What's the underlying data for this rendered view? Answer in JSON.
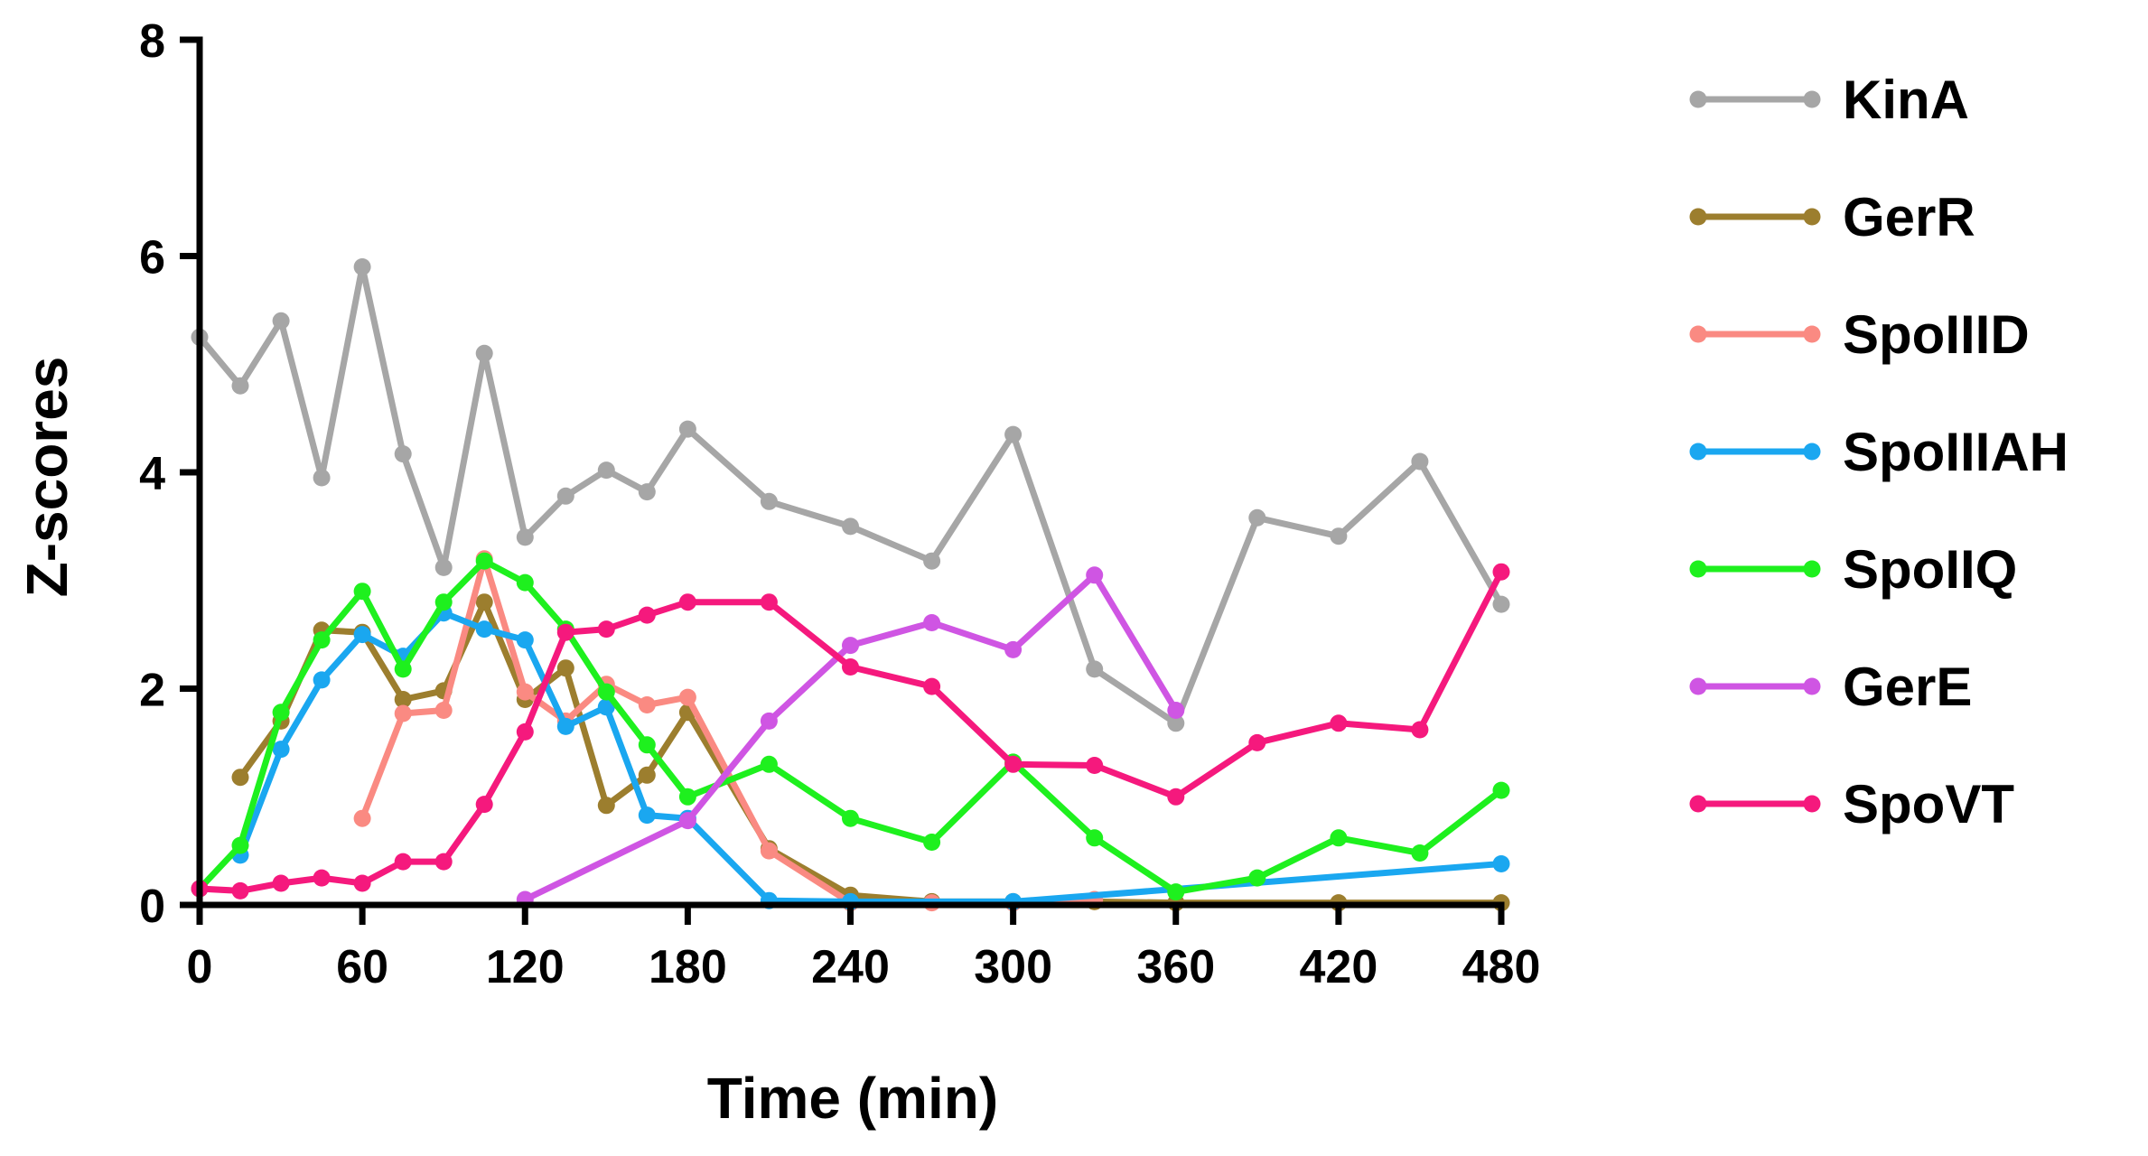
{
  "chart_data": {
    "type": "line",
    "title": "",
    "xlabel": "Time (min)",
    "ylabel": "Z-scores",
    "xlim": [
      0,
      480
    ],
    "ylim": [
      0,
      8
    ],
    "xticks": [
      "0",
      "60",
      "120",
      "180",
      "240",
      "300",
      "360",
      "420",
      "480"
    ],
    "yticks": [
      "0",
      "2",
      "4",
      "6",
      "8"
    ],
    "grid": false,
    "legend_position": "right",
    "series": [
      {
        "name": "KinA",
        "color": "#A6A6A6",
        "points": [
          [
            0,
            5.25
          ],
          [
            15,
            4.8
          ],
          [
            30,
            5.4
          ],
          [
            45,
            3.95
          ],
          [
            60,
            5.9
          ],
          [
            75,
            4.17
          ],
          [
            90,
            3.12
          ],
          [
            105,
            5.1
          ],
          [
            120,
            3.4
          ],
          [
            135,
            3.78
          ],
          [
            150,
            4.02
          ],
          [
            165,
            3.82
          ],
          [
            180,
            4.4
          ],
          [
            210,
            3.73
          ],
          [
            240,
            3.5
          ],
          [
            270,
            3.18
          ],
          [
            300,
            4.35
          ],
          [
            330,
            2.18
          ],
          [
            360,
            1.68
          ],
          [
            390,
            3.58
          ],
          [
            420,
            3.41
          ],
          [
            450,
            4.1
          ],
          [
            480,
            2.78
          ]
        ]
      },
      {
        "name": "GerR",
        "color": "#9C7E2E",
        "points": [
          [
            15,
            1.18
          ],
          [
            30,
            1.7
          ],
          [
            45,
            2.54
          ],
          [
            60,
            2.52
          ],
          [
            75,
            1.9
          ],
          [
            90,
            1.98
          ],
          [
            105,
            2.8
          ],
          [
            120,
            1.9
          ],
          [
            135,
            2.19
          ],
          [
            150,
            0.92
          ],
          [
            165,
            1.2
          ],
          [
            180,
            1.78
          ],
          [
            210,
            0.52
          ],
          [
            240,
            0.09
          ],
          [
            270,
            0.03
          ],
          [
            300,
            0.03
          ],
          [
            330,
            0.03
          ],
          [
            360,
            0.02
          ],
          [
            420,
            0.02
          ],
          [
            480,
            0.02
          ]
        ]
      },
      {
        "name": "SpoIIID",
        "color": "#FA8A82",
        "points": [
          [
            60,
            0.8
          ],
          [
            75,
            1.77
          ],
          [
            90,
            1.8
          ],
          [
            105,
            3.2
          ],
          [
            120,
            1.97
          ],
          [
            135,
            1.7
          ],
          [
            150,
            2.04
          ],
          [
            165,
            1.85
          ],
          [
            180,
            1.92
          ],
          [
            210,
            0.5
          ],
          [
            240,
            0.02
          ],
          [
            270,
            0.02
          ],
          [
            300,
            0.02
          ],
          [
            330,
            0.05
          ]
        ]
      },
      {
        "name": "SpoIIIAH",
        "color": "#1AA7F0",
        "points": [
          [
            15,
            0.46
          ],
          [
            30,
            1.44
          ],
          [
            45,
            2.08
          ],
          [
            60,
            2.5
          ],
          [
            75,
            2.3
          ],
          [
            90,
            2.7
          ],
          [
            105,
            2.55
          ],
          [
            120,
            2.45
          ],
          [
            135,
            1.65
          ],
          [
            150,
            1.83
          ],
          [
            165,
            0.83
          ],
          [
            180,
            0.8
          ],
          [
            210,
            0.04
          ],
          [
            240,
            0.03
          ],
          [
            300,
            0.03
          ],
          [
            480,
            0.38
          ]
        ]
      },
      {
        "name": "SpoIIQ",
        "color": "#1EF01E",
        "points": [
          [
            0,
            0.15
          ],
          [
            15,
            0.55
          ],
          [
            30,
            1.78
          ],
          [
            45,
            2.45
          ],
          [
            60,
            2.9
          ],
          [
            75,
            2.18
          ],
          [
            90,
            2.8
          ],
          [
            105,
            3.18
          ],
          [
            120,
            2.98
          ],
          [
            135,
            2.55
          ],
          [
            150,
            1.97
          ],
          [
            165,
            1.48
          ],
          [
            180,
            1.0
          ],
          [
            210,
            1.3
          ],
          [
            240,
            0.8
          ],
          [
            270,
            0.58
          ],
          [
            300,
            1.32
          ],
          [
            330,
            0.62
          ],
          [
            360,
            0.12
          ],
          [
            390,
            0.25
          ],
          [
            420,
            0.62
          ],
          [
            450,
            0.48
          ],
          [
            480,
            1.06
          ]
        ]
      },
      {
        "name": "GerE",
        "color": "#CF55E3",
        "points": [
          [
            120,
            0.05
          ],
          [
            180,
            0.78
          ],
          [
            210,
            1.7
          ],
          [
            240,
            2.4
          ],
          [
            270,
            2.61
          ],
          [
            300,
            2.36
          ],
          [
            330,
            3.05
          ],
          [
            360,
            1.8
          ]
        ]
      },
      {
        "name": "SpoVT",
        "color": "#F5197D",
        "points": [
          [
            0,
            0.15
          ],
          [
            15,
            0.13
          ],
          [
            30,
            0.2
          ],
          [
            45,
            0.25
          ],
          [
            60,
            0.2
          ],
          [
            75,
            0.4
          ],
          [
            90,
            0.4
          ],
          [
            105,
            0.93
          ],
          [
            120,
            1.6
          ],
          [
            135,
            2.52
          ],
          [
            150,
            2.55
          ],
          [
            165,
            2.68
          ],
          [
            180,
            2.8
          ],
          [
            210,
            2.8
          ],
          [
            240,
            2.2
          ],
          [
            270,
            2.02
          ],
          [
            300,
            1.3
          ],
          [
            330,
            1.29
          ],
          [
            360,
            1.0
          ],
          [
            390,
            1.5
          ],
          [
            420,
            1.68
          ],
          [
            450,
            1.62
          ],
          [
            480,
            3.08
          ]
        ]
      }
    ]
  }
}
